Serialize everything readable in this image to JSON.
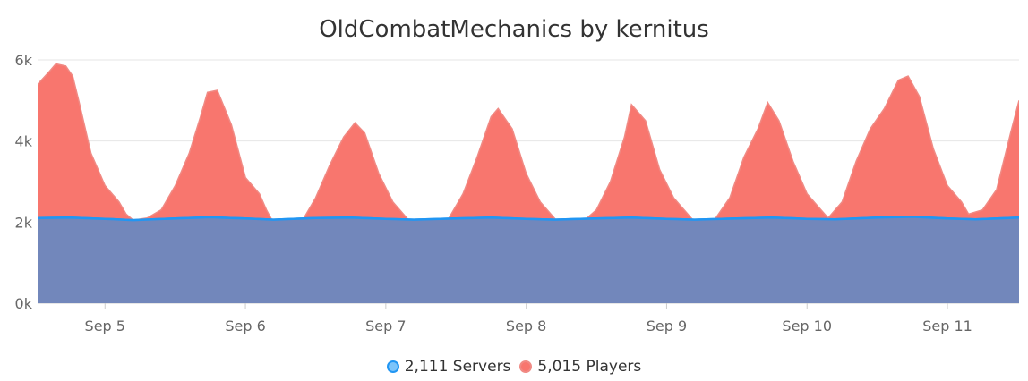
{
  "chart_data": {
    "type": "area",
    "title": "OldCombatMechanics by kernitus",
    "xlabel": "",
    "ylabel": "",
    "ylim": [
      0,
      6000
    ],
    "y_ticks": [
      {
        "value": 0,
        "label": "0k"
      },
      {
        "value": 2000,
        "label": "2k"
      },
      {
        "value": 4000,
        "label": "4k"
      },
      {
        "value": 6000,
        "label": "6k"
      }
    ],
    "xlim": [
      4.52,
      11.51
    ],
    "x_ticks": [
      {
        "value": 5,
        "label": "Sep 5"
      },
      {
        "value": 6,
        "label": "Sep 6"
      },
      {
        "value": 7,
        "label": "Sep 7"
      },
      {
        "value": 8,
        "label": "Sep 8"
      },
      {
        "value": 9,
        "label": "Sep 9"
      },
      {
        "value": 10,
        "label": "Sep 10"
      },
      {
        "value": 11,
        "label": "Sep 11"
      }
    ],
    "grid": true,
    "legend_position": "bottom-center",
    "series": [
      {
        "name": "Servers",
        "legend_label": "2,111 Servers",
        "line_color": "#2196f3",
        "fill_color": "#7cc4fa",
        "x": [
          4.52,
          4.75,
          5.0,
          5.2,
          5.5,
          5.75,
          6.0,
          6.2,
          6.5,
          6.75,
          7.0,
          7.2,
          7.5,
          7.75,
          8.0,
          8.2,
          8.5,
          8.75,
          9.0,
          9.2,
          9.5,
          9.75,
          10.0,
          10.2,
          10.5,
          10.75,
          11.0,
          11.2,
          11.51
        ],
        "values": [
          2100,
          2110,
          2080,
          2050,
          2090,
          2120,
          2090,
          2060,
          2100,
          2110,
          2080,
          2060,
          2090,
          2110,
          2080,
          2060,
          2090,
          2110,
          2080,
          2060,
          2090,
          2110,
          2080,
          2070,
          2110,
          2130,
          2090,
          2070,
          2110
        ]
      },
      {
        "name": "Players",
        "legend_label": "5,015 Players",
        "line_color": "#f08a84",
        "fill_color": "#f8766e",
        "x": [
          4.52,
          4.6,
          4.65,
          4.72,
          4.77,
          4.82,
          4.9,
          5.0,
          5.1,
          5.15,
          5.2,
          5.3,
          5.4,
          5.5,
          5.6,
          5.68,
          5.73,
          5.8,
          5.9,
          6.0,
          6.1,
          6.15,
          6.22,
          6.3,
          6.4,
          6.5,
          6.6,
          6.7,
          6.78,
          6.85,
          6.95,
          7.05,
          7.15,
          7.25,
          7.35,
          7.45,
          7.55,
          7.65,
          7.75,
          7.8,
          7.9,
          8.0,
          8.1,
          8.2,
          8.3,
          8.4,
          8.5,
          8.6,
          8.7,
          8.75,
          8.85,
          8.95,
          9.05,
          9.15,
          9.25,
          9.35,
          9.45,
          9.55,
          9.65,
          9.72,
          9.8,
          9.9,
          10.0,
          10.1,
          10.15,
          10.25,
          10.35,
          10.45,
          10.55,
          10.65,
          10.72,
          10.8,
          10.9,
          11.0,
          11.1,
          11.15,
          11.25,
          11.35,
          11.45,
          11.51
        ],
        "values": [
          5400,
          5700,
          5900,
          5850,
          5600,
          4900,
          3700,
          2900,
          2500,
          2200,
          2050,
          2100,
          2300,
          2900,
          3700,
          4600,
          5200,
          5250,
          4400,
          3100,
          2700,
          2300,
          1850,
          1700,
          2000,
          2600,
          3400,
          4100,
          4450,
          4200,
          3200,
          2500,
          2100,
          1600,
          1500,
          2100,
          2700,
          3600,
          4600,
          4800,
          4300,
          3200,
          2500,
          2100,
          1700,
          2000,
          2300,
          3000,
          4100,
          4900,
          4500,
          3300,
          2600,
          2200,
          1800,
          2100,
          2600,
          3600,
          4300,
          4950,
          4500,
          3500,
          2700,
          2300,
          2100,
          2500,
          3500,
          4300,
          4800,
          5500,
          5600,
          5100,
          3800,
          2900,
          2500,
          2200,
          2300,
          2800,
          4200,
          5000
        ]
      }
    ]
  }
}
